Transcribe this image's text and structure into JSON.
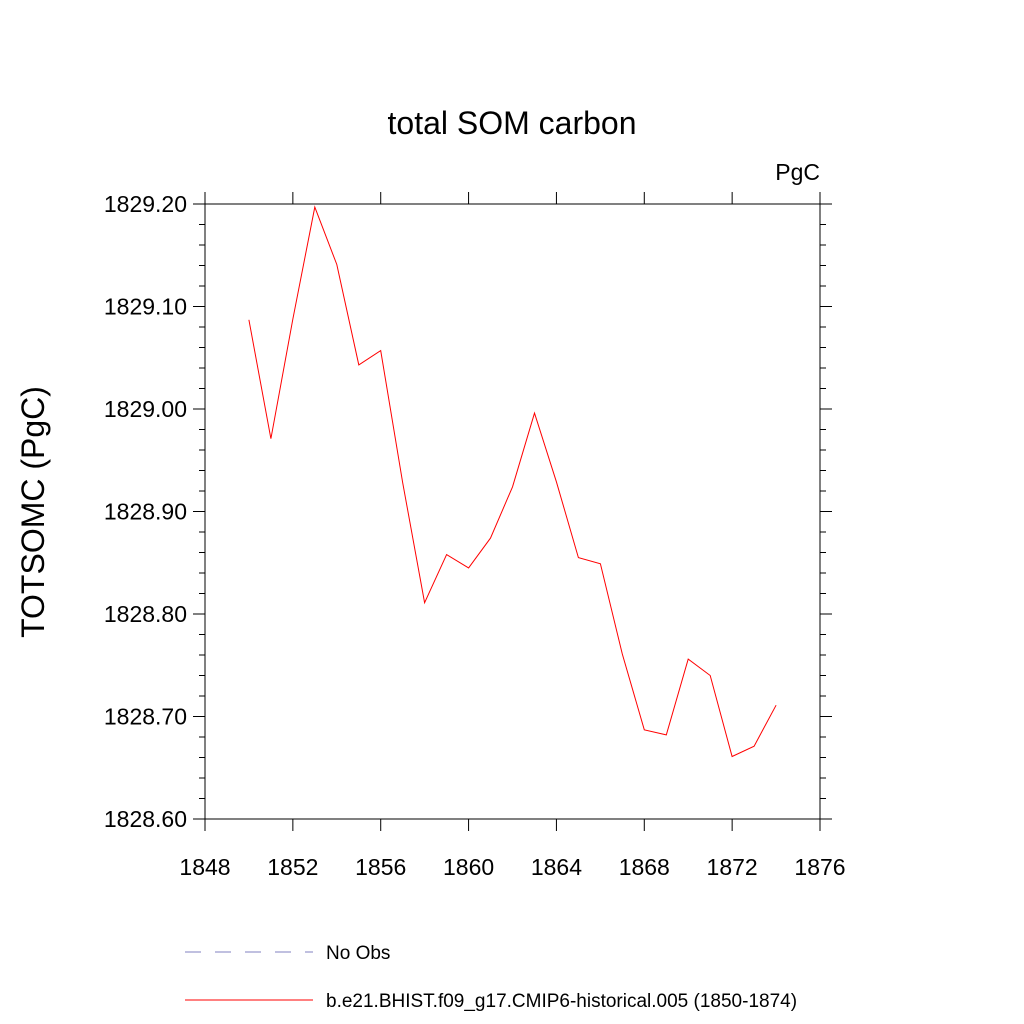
{
  "chart_data": {
    "type": "line",
    "title": "total SOM carbon",
    "units": "PgC",
    "xlabel": "",
    "ylabel": "TOTSOMC  (PgC)",
    "xlim": [
      1848,
      1876
    ],
    "ylim": [
      1828.6,
      1829.2
    ],
    "xticks": [
      1848,
      1852,
      1856,
      1860,
      1864,
      1868,
      1872,
      1876
    ],
    "yticks": [
      1828.6,
      1828.7,
      1828.8,
      1828.9,
      1829.0,
      1829.1,
      1829.2
    ],
    "xtick_labels": [
      "1848",
      "1852",
      "1856",
      "1860",
      "1864",
      "1868",
      "1872",
      "1876"
    ],
    "ytick_labels": [
      "1828.60",
      "1828.70",
      "1828.80",
      "1828.90",
      "1829.00",
      "1829.10",
      "1829.20"
    ],
    "grid": false,
    "series": [
      {
        "name": "b.e21.BHIST.f09_g17.CMIP6-historical.005 (1850-1874)",
        "color": "#ff0000",
        "x": [
          1850,
          1851,
          1852,
          1853,
          1854,
          1855,
          1856,
          1857,
          1858,
          1859,
          1860,
          1861,
          1862,
          1863,
          1864,
          1865,
          1866,
          1867,
          1868,
          1869,
          1870,
          1871,
          1872,
          1873,
          1874
        ],
        "y": [
          1829.087,
          1828.971,
          1829.088,
          1829.197,
          1829.141,
          1829.043,
          1829.057,
          1828.928,
          1828.811,
          1828.858,
          1828.845,
          1828.874,
          1828.924,
          1828.996,
          1828.929,
          1828.855,
          1828.849,
          1828.761,
          1828.687,
          1828.682,
          1828.756,
          1828.74,
          1828.661,
          1828.671,
          1828.711
        ]
      }
    ],
    "legend": [
      {
        "label": "No Obs",
        "color": "#8080c0",
        "style": "dashed"
      },
      {
        "label": "b.e21.BHIST.f09_g17.CMIP6-historical.005 (1850-1874)",
        "color": "#ff0000",
        "style": "solid"
      }
    ]
  }
}
